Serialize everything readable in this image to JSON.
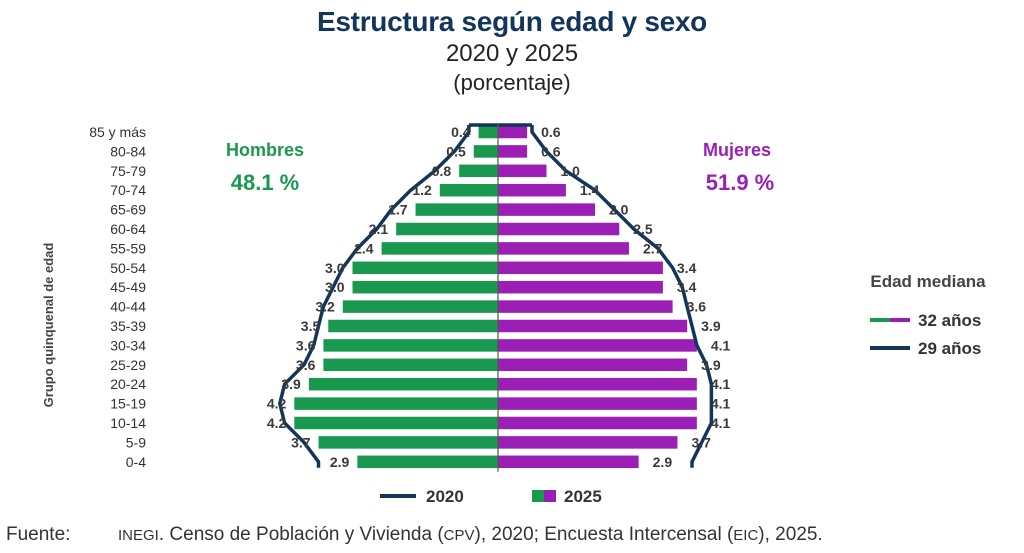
{
  "title": "Estructura según edad y sexo",
  "subtitle": "2020 y 2025",
  "unit_note": "(porcentaje)",
  "colors": {
    "hombres": "#1a9850",
    "mujeres": "#9b1fb5",
    "line_2020": "#12355b",
    "title": "#12355b"
  },
  "chart_data": {
    "type": "bar",
    "orientation": "horizontal-pyramid",
    "ylabel": "Grupo quinquenal de edad",
    "categories": [
      "85 y más",
      "80-84",
      "75-79",
      "70-74",
      "65-69",
      "60-64",
      "55-59",
      "50-54",
      "45-49",
      "40-44",
      "35-39",
      "30-34",
      "25-29",
      "20-24",
      "15-19",
      "10-14",
      "5-9",
      "0-4"
    ],
    "series": [
      {
        "name": "Hombres",
        "total_label": "48.1 %",
        "year": "2025",
        "values": [
          0.4,
          0.5,
          0.8,
          1.2,
          1.7,
          2.1,
          2.4,
          3.0,
          3.0,
          3.2,
          3.5,
          3.6,
          3.6,
          3.9,
          4.2,
          4.2,
          3.7,
          2.9
        ]
      },
      {
        "name": "Mujeres",
        "total_label": "51.9 %",
        "year": "2025",
        "values": [
          0.6,
          0.6,
          1.0,
          1.4,
          2.0,
          2.5,
          2.7,
          3.4,
          3.4,
          3.6,
          3.9,
          4.1,
          3.9,
          4.1,
          4.1,
          4.1,
          3.7,
          2.9
        ]
      }
    ],
    "outline_2020": {
      "name": "2020",
      "hombres": [
        0.6,
        0.9,
        1.3,
        1.8,
        2.2,
        2.5,
        2.9,
        3.2,
        3.4,
        3.6,
        3.7,
        3.8,
        4.0,
        4.4,
        4.5,
        4.4,
        4.0,
        3.7
      ],
      "mujeres": [
        0.7,
        1.0,
        1.4,
        2.0,
        2.4,
        2.8,
        3.3,
        3.6,
        3.8,
        3.9,
        4.0,
        4.1,
        4.3,
        4.4,
        4.4,
        4.4,
        4.2,
        4.0
      ]
    },
    "legend": {
      "items": [
        "2020",
        "2025"
      ],
      "position": "bottom"
    },
    "median_legend": {
      "title": "Edad mediana",
      "items": [
        "32 años",
        "29 años"
      ],
      "position": "right"
    }
  },
  "source": {
    "label": "Fuente:",
    "inegi": "INEGI",
    "text1": ". Censo de Población y Vivienda (",
    "cpv": "CPV",
    "text2": "), 2020; Encuesta Intercensal (",
    "eic": "EIC",
    "text3": "), 2025."
  }
}
